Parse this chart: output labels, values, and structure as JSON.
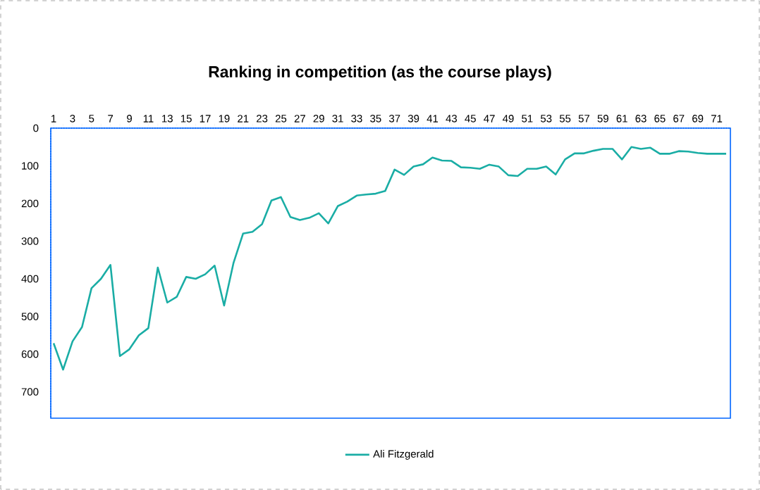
{
  "chart_data": {
    "type": "line",
    "title": "Ranking in competition (as the course plays)",
    "categories": [
      "1",
      null,
      "3",
      null,
      "5",
      null,
      "7",
      null,
      "9",
      null,
      "11",
      null,
      "13",
      null,
      "15",
      null,
      "17",
      null,
      "19",
      null,
      "21",
      null,
      "23",
      null,
      "25",
      null,
      "27",
      null,
      "29",
      null,
      "31",
      null,
      "33",
      null,
      "35",
      null,
      "37",
      null,
      "39",
      null,
      "41",
      null,
      "43",
      null,
      "45",
      null,
      "47",
      null,
      "49",
      null,
      "51",
      null,
      "53",
      null,
      "55",
      null,
      "57",
      null,
      "59",
      null,
      "61",
      null,
      "63",
      null,
      "65",
      null,
      "67",
      null,
      "69",
      null,
      "71",
      null
    ],
    "series": [
      {
        "name": "Ali Fitzgerald",
        "color": "#1aada5",
        "values": [
          571,
          641,
          566,
          528,
          425,
          400,
          363,
          605,
          587,
          550,
          531,
          370,
          463,
          448,
          395,
          400,
          388,
          365,
          471,
          357,
          280,
          275,
          255,
          192,
          183,
          236,
          244,
          238,
          226,
          253,
          207,
          195,
          179,
          176,
          174,
          167,
          110,
          124,
          102,
          96,
          78,
          86,
          87,
          104,
          105,
          108,
          97,
          102,
          125,
          127,
          108,
          108,
          102,
          123,
          83,
          67,
          67,
          60,
          55,
          55,
          83,
          50,
          55,
          52,
          68,
          68,
          61,
          62,
          66,
          68,
          68,
          68
        ]
      }
    ],
    "ylim": [
      770,
      0
    ],
    "yticks": [
      0,
      100,
      200,
      300,
      400,
      500,
      600,
      700
    ],
    "legend": "bottom",
    "marker": "none",
    "line_style": "solid"
  }
}
